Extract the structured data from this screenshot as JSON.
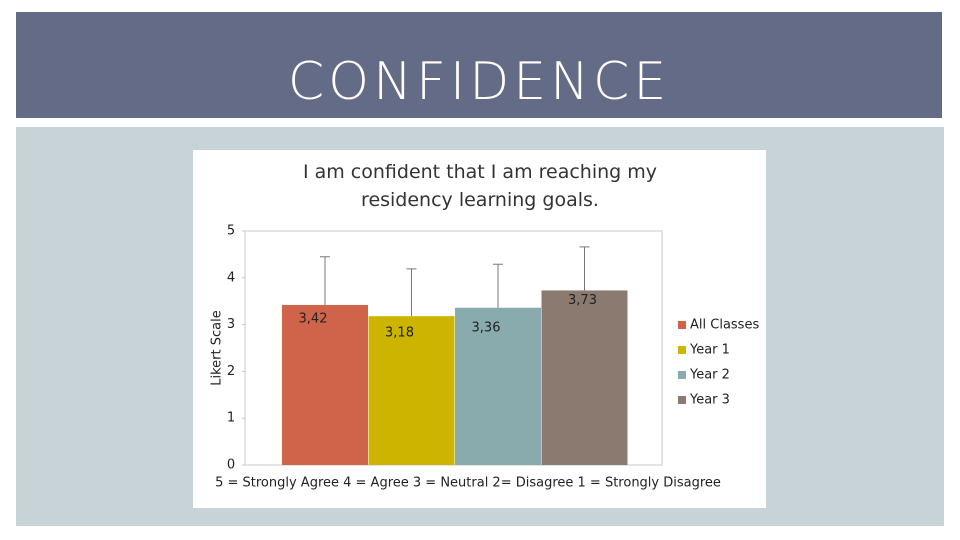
{
  "header": {
    "title": "CONFIDENCE"
  },
  "chart_data": {
    "type": "bar",
    "title": "I am confident that I am reaching my residency learning goals.",
    "y_label": "Likert Scale",
    "x_label": "5 = Strongly Agree   4 = Agree   3 = Neutral   2= Disagree   1 = Strongly Disagree",
    "ylim": [
      0,
      5
    ],
    "yticks": [
      0,
      1,
      2,
      3,
      4,
      5
    ],
    "grid": false,
    "legend": "right",
    "series": [
      {
        "name": "All Classes",
        "color": "#d0644a",
        "values": [
          3.42
        ],
        "value_labels": [
          "3,42"
        ],
        "errors": [
          1.03
        ]
      },
      {
        "name": "Year 1",
        "color": "#ccb400",
        "values": [
          3.18
        ],
        "value_labels": [
          "3,18"
        ],
        "errors": [
          1.01
        ]
      },
      {
        "name": "Year 2",
        "color": "#8aabae",
        "values": [
          3.36
        ],
        "value_labels": [
          "3,36"
        ],
        "errors": [
          0.93
        ]
      },
      {
        "name": "Year 3",
        "color": "#8a7a70",
        "values": [
          3.73
        ],
        "value_labels": [
          "3,73"
        ],
        "errors": [
          0.93
        ]
      }
    ]
  }
}
